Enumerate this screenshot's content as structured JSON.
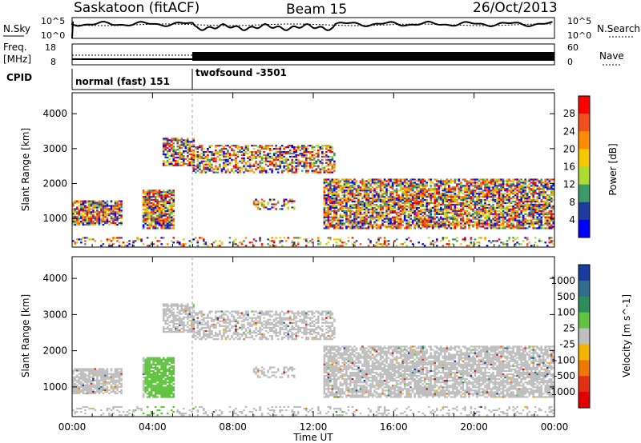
{
  "header": {
    "station": "Saskatoon (fitACF)",
    "beam": "Beam 15",
    "date": "26/Oct/2013"
  },
  "noise_panel": {
    "left_label": "N.Sky",
    "right_label": "N.Search",
    "left_ticks": [
      "10^5",
      "10^0"
    ],
    "right_ticks": [
      "10^5",
      "10^0"
    ]
  },
  "freq_panel": {
    "left_label_1": "Freq.",
    "left_label_2": "[MHz]",
    "right_label": "Nave",
    "left_ticks": [
      "18",
      "8"
    ],
    "right_ticks": [
      "60",
      "0"
    ]
  },
  "cpid_panel": {
    "label": "CPID",
    "modes": [
      {
        "name": "normal (fast) 151",
        "start_hour": 0,
        "end_hour": 6
      },
      {
        "name": "twofsound -3501",
        "start_hour": 6,
        "end_hour": 24
      }
    ]
  },
  "x_axis": {
    "label": "Time UT",
    "ticks": [
      "00:00",
      "04:00",
      "08:00",
      "12:00",
      "16:00",
      "20:00",
      "00:00"
    ],
    "range_hours": [
      0,
      24
    ]
  },
  "chart_data": [
    {
      "type": "heatmap",
      "ylabel": "Slant Range [km]",
      "yticks": [
        1000,
        2000,
        3000,
        4000
      ],
      "ylim": [
        180,
        4600
      ],
      "xlim_hours": [
        0,
        24
      ],
      "colorbar": {
        "label": "Power [dB]",
        "ticks": [
          "28",
          "24",
          "20",
          "16",
          "12",
          "8",
          "4"
        ],
        "colors": [
          "#ff0000",
          "#f0501e",
          "#ff8c00",
          "#f5c800",
          "#aadc32",
          "#3a9a6a",
          "#1e3ca0",
          "#0000ff"
        ]
      }
    },
    {
      "type": "heatmap",
      "ylabel": "Slant Range [km]",
      "yticks": [
        1000,
        2000,
        3000,
        4000
      ],
      "ylim": [
        180,
        4600
      ],
      "xlim_hours": [
        0,
        24
      ],
      "colorbar": {
        "label": "Velocity [m s^-1]",
        "ticks": [
          "1000",
          "500",
          "100",
          "25",
          "-25",
          "-100",
          "-500",
          "-1000"
        ],
        "colors": [
          "#1a3ca0",
          "#2e6e8c",
          "#2e8c5a",
          "#60c440",
          "#bebebe",
          "#f5b400",
          "#f07800",
          "#e03010",
          "#e00000"
        ]
      }
    }
  ]
}
